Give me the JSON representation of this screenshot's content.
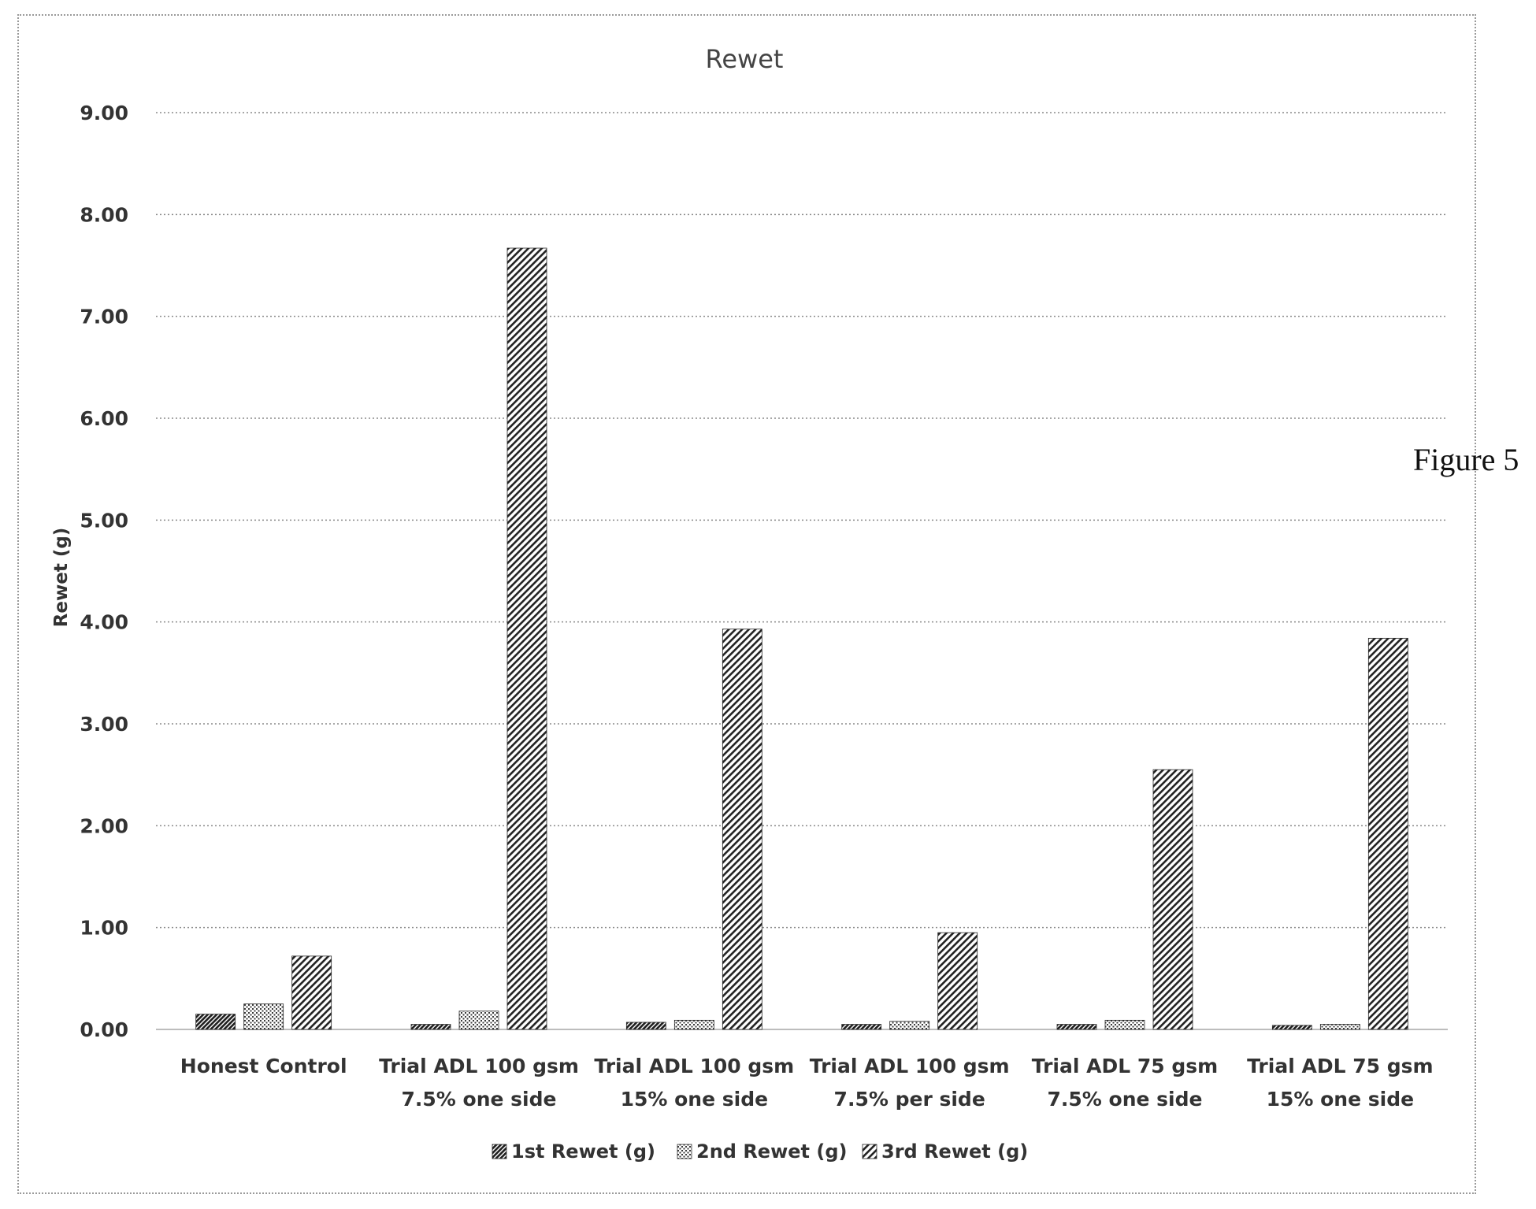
{
  "figure_label": "Figure 5",
  "colors": {
    "gridline": "#8a8a8a",
    "axis_line": "#bdbdbd",
    "bar_fill": "#2b2b2b",
    "text": "#333333"
  },
  "chart_data": {
    "type": "bar",
    "title": "Rewet",
    "xlabel": "",
    "ylabel": "Rewet (g)",
    "ylim": [
      0,
      9
    ],
    "yticks": [
      0,
      1,
      2,
      3,
      4,
      5,
      6,
      7,
      8,
      9
    ],
    "ytick_labels": [
      "0.00",
      "1.00",
      "2.00",
      "3.00",
      "4.00",
      "5.00",
      "6.00",
      "7.00",
      "8.00",
      "9.00"
    ],
    "grid": true,
    "legend_position": "bottom",
    "categories": [
      [
        "Honest Control"
      ],
      [
        "Trial ADL 100 gsm",
        "7.5% one side"
      ],
      [
        "Trial ADL 100 gsm",
        "15% one side"
      ],
      [
        "Trial ADL 100 gsm",
        "7.5% per side"
      ],
      [
        "Trial ADL 75 gsm",
        "7.5% one side"
      ],
      [
        "Trial ADL 75 gsm",
        "15% one side"
      ]
    ],
    "series": [
      {
        "name": "1st Rewet (g)",
        "pattern": "dense-diagonal",
        "values": [
          0.15,
          0.05,
          0.07,
          0.05,
          0.05,
          0.04
        ]
      },
      {
        "name": "2nd Rewet (g)",
        "pattern": "dots",
        "values": [
          0.25,
          0.18,
          0.09,
          0.08,
          0.09,
          0.05
        ]
      },
      {
        "name": "3rd Rewet (g)",
        "pattern": "diagonal-stripes",
        "values": [
          0.72,
          7.67,
          3.93,
          0.95,
          2.55,
          3.84
        ]
      }
    ]
  }
}
